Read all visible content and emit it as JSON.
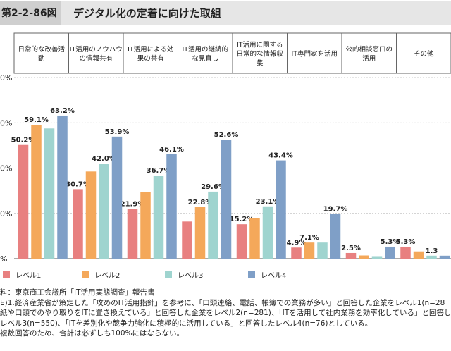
{
  "header": {
    "figure_label": "第2-2-86図",
    "title": "デジタル化の定着に向けた取組"
  },
  "colors": {
    "level1": "#e88080",
    "level2": "#f4a85a",
    "level3": "#9fd4cf",
    "level4": "#7f9fc7"
  },
  "chart_data": {
    "type": "bar",
    "title": "デジタル化の定着に向けた取組",
    "categories": [
      [
        "日常的な改善活",
        "動"
      ],
      [
        "IT活用のノウハウ",
        "の情報共有"
      ],
      [
        "IT活用による効",
        "果の共有"
      ],
      [
        "IT活用の継続的",
        "な見直し"
      ],
      [
        "IT活用に関する",
        "日常的な情報収",
        "集"
      ],
      [
        "IT専門家を活用"
      ],
      [
        "公的相談窓口の",
        "活用"
      ],
      [
        "その他"
      ]
    ],
    "series": [
      {
        "name": "レベル1",
        "values": [
          50.2,
          30.7,
          21.9,
          16.4,
          15.2,
          4.9,
          2.5,
          5.3
        ]
      },
      {
        "name": "レベル2",
        "values": [
          59.1,
          38.5,
          29.5,
          22.8,
          18.0,
          7.1,
          1.4,
          3.2
        ]
      },
      {
        "name": "レベル3",
        "values": [
          57.5,
          42.0,
          36.7,
          29.6,
          23.1,
          7.1,
          1.1,
          1.3
        ]
      },
      {
        "name": "レベル4",
        "values": [
          63.2,
          53.9,
          46.1,
          52.6,
          43.4,
          19.7,
          5.3,
          1.3
        ]
      }
    ],
    "data_labels": [
      [
        "50.2%",
        "59.1%",
        null,
        "63.2%"
      ],
      [
        "30.7%",
        null,
        "42.0%",
        "53.9%"
      ],
      [
        "21.9%",
        null,
        "36.7%",
        "46.1%"
      ],
      [
        null,
        "22.8%",
        "29.6%",
        "52.6%"
      ],
      [
        "15.2%",
        null,
        "23.1%",
        "43.4%"
      ],
      [
        "4.9%",
        "7.1%",
        null,
        "19.7%"
      ],
      [
        "2.5%",
        null,
        null,
        "5.3%"
      ],
      [
        "5.3%",
        null,
        "1.3",
        null
      ]
    ],
    "y_tick_labels": [
      "0%",
      "0%",
      "0%",
      "0%",
      "0%",
      "%"
    ],
    "ylim": [
      0,
      80
    ],
    "xlabel": "",
    "ylabel": "",
    "legend_position": "bottom"
  },
  "notes": [
    "料：東京商工会議所「IT活用実態調査」報告書",
    "E)1.経済産業省が策定した「攻めのIT活用指針」を参考に、「口頭連絡、電話、帳簿での業務が多い」と回答した企業をレベル1(n=28",
    "紙や口頭でのやり取りをITに置き換えている」と回答した企業をレベル2(n=281)、「ITを活用して社内業務を効率化している」と回答した企",
    "レベル3(n=550)、「ITを差別化や競争力強化に積極的に活用している」と回答したレベル4(n=76)としている。",
    "複数回答のため、合計は必ずしも100%にはならない。"
  ]
}
